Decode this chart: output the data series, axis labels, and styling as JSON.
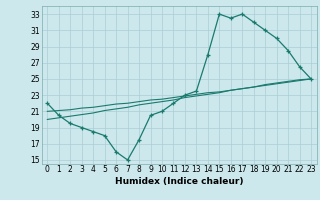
{
  "xlabel": "Humidex (Indice chaleur)",
  "bg_color": "#cce8ec",
  "grid_color": "#aacdd4",
  "line_color": "#1a7a6e",
  "xlim": [
    -0.5,
    23.5
  ],
  "ylim": [
    14.5,
    34
  ],
  "yticks": [
    15,
    17,
    19,
    21,
    23,
    25,
    27,
    29,
    31,
    33
  ],
  "xticks": [
    0,
    1,
    2,
    3,
    4,
    5,
    6,
    7,
    8,
    9,
    10,
    11,
    12,
    13,
    14,
    15,
    16,
    17,
    18,
    19,
    20,
    21,
    22,
    23
  ],
  "line1_x": [
    0,
    1,
    2,
    3,
    4,
    5,
    6,
    7,
    8,
    9,
    10,
    11,
    12,
    13,
    14,
    15,
    16,
    17,
    18,
    19,
    20,
    21,
    22,
    23
  ],
  "line1_y": [
    22,
    20.5,
    19.5,
    19,
    18.5,
    18,
    16,
    15,
    17.5,
    20.5,
    21,
    22,
    23,
    23.5,
    28,
    33,
    32.5,
    33,
    32,
    31,
    30,
    28.5,
    26.5,
    25
  ],
  "line2_x": [
    0,
    1,
    2,
    3,
    4,
    5,
    6,
    7,
    8,
    9,
    10,
    11,
    12,
    13,
    14,
    15,
    16,
    17,
    18,
    19,
    20,
    21,
    22,
    23
  ],
  "line2_y": [
    21,
    21.1,
    21.2,
    21.4,
    21.5,
    21.7,
    21.9,
    22.0,
    22.2,
    22.4,
    22.5,
    22.7,
    22.9,
    23.1,
    23.3,
    23.4,
    23.6,
    23.8,
    24.0,
    24.2,
    24.4,
    24.6,
    24.8,
    25
  ],
  "line3_x": [
    0,
    1,
    2,
    3,
    4,
    5,
    6,
    7,
    8,
    9,
    10,
    11,
    12,
    13,
    14,
    15,
    16,
    17,
    18,
    19,
    20,
    21,
    22,
    23
  ],
  "line3_y": [
    20,
    20.2,
    20.4,
    20.6,
    20.8,
    21.1,
    21.3,
    21.5,
    21.8,
    22.0,
    22.2,
    22.4,
    22.7,
    22.9,
    23.1,
    23.3,
    23.6,
    23.8,
    24.0,
    24.3,
    24.5,
    24.7,
    24.9,
    25
  ]
}
